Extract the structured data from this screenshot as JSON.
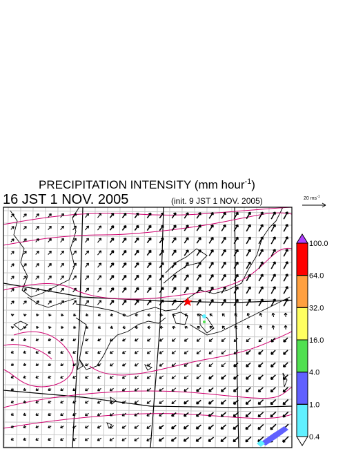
{
  "header": {
    "title": "PRECIPITATION INTENSITY (mm hour",
    "title_sup": "-1",
    "title_end": ")",
    "valid_time": "16 JST 1 NOV. 2005",
    "init_time": "(init. 9 JST 1 NOV. 2005)"
  },
  "vector_scale": {
    "label": "20 ms",
    "label_sup": "-1"
  },
  "colorbar": {
    "levels": [
      {
        "value": 100,
        "label": "100.0"
      },
      {
        "value": 64,
        "label": "64.0"
      },
      {
        "value": 32,
        "label": "32.0"
      },
      {
        "value": 16,
        "label": "16.0"
      },
      {
        "value": 4,
        "label": "4.0"
      },
      {
        "value": 1,
        "label": "1.0"
      },
      {
        "value": 0.4,
        "label": "0.4"
      }
    ],
    "colors": [
      "#ff0000",
      "#ffa040",
      "#ffff60",
      "#50e050",
      "#6060ff",
      "#60f0ff"
    ],
    "over_color": "#b040ff",
    "under_color": "#ffffff"
  }
}
